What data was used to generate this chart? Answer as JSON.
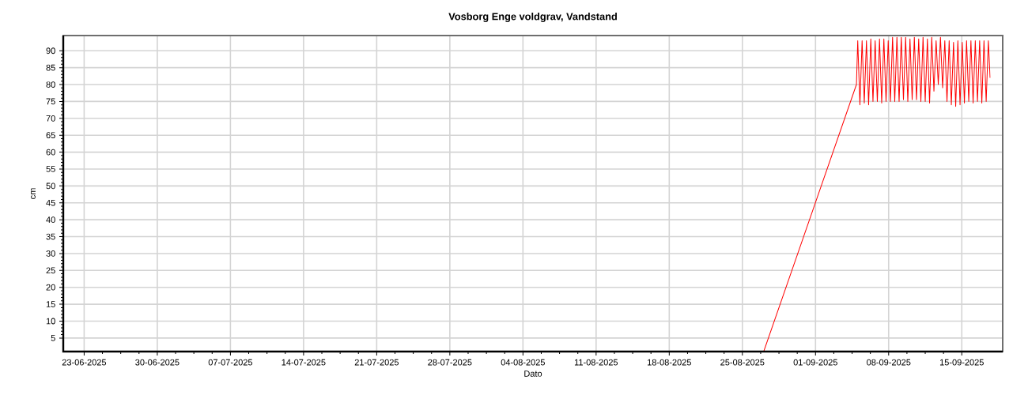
{
  "chart_data": {
    "type": "line",
    "title": "Vosborg Enge voldgrav, Vandstand",
    "xlabel": "Dato",
    "ylabel": "cm",
    "x": [
      "2025-08-27T01:00",
      "2025-09-04T22:00",
      "2025-09-05T01:00",
      "2025-09-05T06:00",
      "2025-09-05T11:00",
      "2025-09-05T16:00",
      "2025-09-05T21:00",
      "2025-09-06T02:00",
      "2025-09-06T07:00",
      "2025-09-06T12:00",
      "2025-09-06T17:00",
      "2025-09-06T22:00",
      "2025-09-07T03:00",
      "2025-09-07T08:00",
      "2025-09-07T13:00",
      "2025-09-07T18:00",
      "2025-09-07T23:00",
      "2025-09-08T04:00",
      "2025-09-08T09:00",
      "2025-09-08T14:00",
      "2025-09-08T19:00",
      "2025-09-09T00:00",
      "2025-09-09T05:00",
      "2025-09-09T10:00",
      "2025-09-09T15:00",
      "2025-09-09T20:00",
      "2025-09-10T01:00",
      "2025-09-10T06:00",
      "2025-09-10T11:00",
      "2025-09-10T16:00",
      "2025-09-10T21:00",
      "2025-09-11T02:00",
      "2025-09-11T07:00",
      "2025-09-11T12:00",
      "2025-09-11T17:00",
      "2025-09-11T22:00",
      "2025-09-12T03:00",
      "2025-09-12T08:00",
      "2025-09-12T13:00",
      "2025-09-12T18:00",
      "2025-09-12T23:00",
      "2025-09-13T04:00",
      "2025-09-13T09:00",
      "2025-09-13T14:00",
      "2025-09-13T19:00",
      "2025-09-14T00:00",
      "2025-09-14T05:00",
      "2025-09-14T10:00",
      "2025-09-14T15:00",
      "2025-09-14T20:00",
      "2025-09-15T01:00",
      "2025-09-15T06:00",
      "2025-09-15T11:00",
      "2025-09-15T16:00",
      "2025-09-15T21:00",
      "2025-09-16T02:00",
      "2025-09-16T07:00",
      "2025-09-16T12:00",
      "2025-09-16T17:00",
      "2025-09-16T22:00",
      "2025-09-17T03:00",
      "2025-09-17T08:00",
      "2025-09-17T13:00",
      "2025-09-17T17:00"
    ],
    "series": [
      {
        "color": "#ff0000",
        "values": [
          1,
          80,
          93,
          74,
          93,
          74.5,
          93,
          74,
          93.5,
          75,
          93,
          75,
          93.5,
          74.5,
          93.5,
          75,
          93,
          75,
          94,
          75,
          94,
          75,
          94,
          75.5,
          94,
          75,
          93.5,
          75.5,
          94,
          75.5,
          93.5,
          75,
          94,
          75,
          93.5,
          74.5,
          94,
          78,
          93,
          80,
          94,
          79,
          93,
          75,
          93,
          74,
          92.5,
          73.5,
          93,
          74,
          92.5,
          74.5,
          93,
          75,
          93,
          74.5,
          93,
          75,
          93,
          74.5,
          93,
          75,
          93,
          82
        ]
      }
    ],
    "xlim": [
      "2025-06-21T00:00",
      "2025-09-18T22:00"
    ],
    "ylim": [
      1,
      94.5
    ],
    "xticks": [
      {
        "value": "2025-06-23",
        "label": "23-06-2025"
      },
      {
        "value": "2025-06-30",
        "label": "30-06-2025"
      },
      {
        "value": "2025-07-07",
        "label": "07-07-2025"
      },
      {
        "value": "2025-07-14",
        "label": "14-07-2025"
      },
      {
        "value": "2025-07-21",
        "label": "21-07-2025"
      },
      {
        "value": "2025-07-28",
        "label": "28-07-2025"
      },
      {
        "value": "2025-08-04",
        "label": "04-08-2025"
      },
      {
        "value": "2025-08-11",
        "label": "11-08-2025"
      },
      {
        "value": "2025-08-18",
        "label": "18-08-2025"
      },
      {
        "value": "2025-08-25",
        "label": "25-08-2025"
      },
      {
        "value": "2025-09-01",
        "label": "01-09-2025"
      },
      {
        "value": "2025-09-08",
        "label": "08-09-2025"
      },
      {
        "value": "2025-09-15",
        "label": "15-09-2025"
      }
    ],
    "yticks": [
      5,
      10,
      15,
      20,
      25,
      30,
      35,
      40,
      45,
      50,
      55,
      60,
      65,
      70,
      75,
      80,
      85,
      90
    ],
    "grid": true,
    "line_style": "solid"
  }
}
